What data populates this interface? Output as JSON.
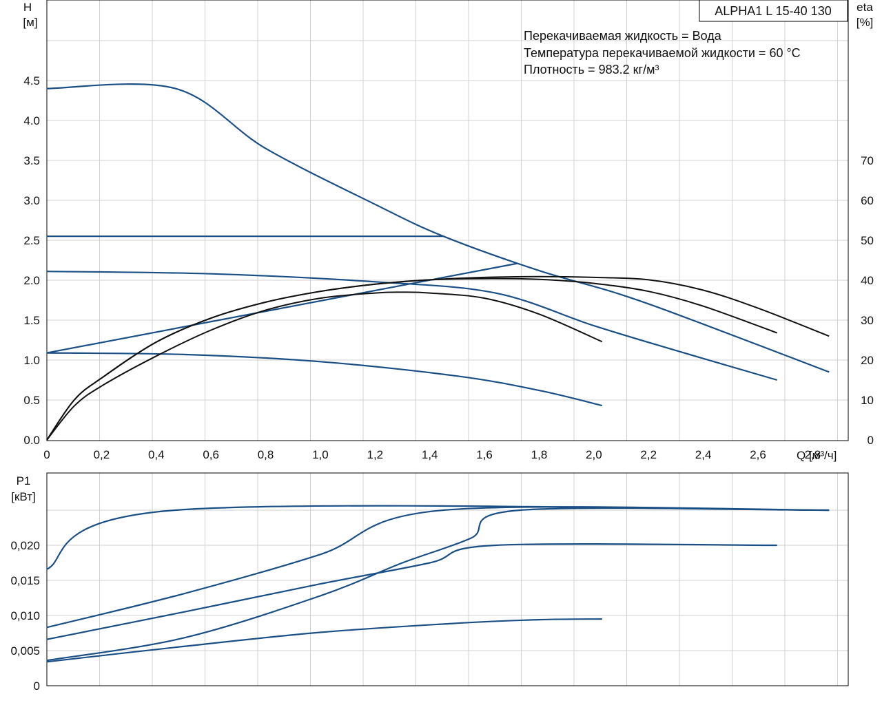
{
  "title_box": "ALPHA1 L 15-40  130",
  "info_lines": [
    "Перекачиваемая жидкость = Вода",
    "Температура перекачиваемой жидкости = 60 °C",
    "Плотность = 983.2 кг/м³"
  ],
  "chart_data": [
    {
      "type": "line",
      "name": "H-Q",
      "ylabel_line1": "H",
      "ylabel_line2": "[м]",
      "y2label_line1": "eta",
      "y2label_line2": "[%]",
      "xlabel": "Q [м³/ч]",
      "xlim": [
        0,
        2.93
      ],
      "ylim": [
        0,
        5.5
      ],
      "y2lim": [
        0,
        110
      ],
      "xticks": [
        "0",
        "0,2",
        "0,4",
        "0,6",
        "0,8",
        "1,0",
        "1,2",
        "1,4",
        "1,6",
        "1,8",
        "2,0",
        "2,2",
        "2,4",
        "2,6",
        "2,8"
      ],
      "xtick_values": [
        0,
        0.2,
        0.4,
        0.6,
        0.8,
        1.0,
        1.2,
        1.4,
        1.6,
        1.8,
        2.0,
        2.2,
        2.4,
        2.6,
        2.8
      ],
      "yticks": [
        "0.0",
        "0.5",
        "1.0",
        "1.5",
        "2.0",
        "2.5",
        "3.0",
        "3.5",
        "4.0",
        "4.5"
      ],
      "ytick_values": [
        0,
        0.5,
        1.0,
        1.5,
        2.0,
        2.5,
        3.0,
        3.5,
        4.0,
        4.5
      ],
      "y2ticks": [
        "0",
        "10",
        "20",
        "30",
        "40",
        "50",
        "60",
        "70"
      ],
      "y2tick_values": [
        0,
        10,
        20,
        30,
        40,
        50,
        60,
        70
      ],
      "head_series": [
        {
          "x": [
            0,
            0.47,
            0.8,
            1.2,
            1.45,
            1.8,
            2.1,
            2.4,
            2.86
          ],
          "y": [
            4.4,
            4.4,
            3.65,
            2.95,
            2.55,
            2.12,
            1.82,
            1.45,
            0.85
          ]
        },
        {
          "x": [
            0,
            1.45
          ],
          "y": [
            2.55,
            2.55
          ]
        },
        {
          "x": [
            0,
            1.72
          ],
          "y": [
            1.09,
            2.21
          ]
        },
        {
          "x": [
            0,
            0.6,
            1.2,
            1.64,
            2.0,
            2.3,
            2.67
          ],
          "y": [
            2.11,
            2.08,
            1.98,
            1.84,
            1.43,
            1.12,
            0.75
          ]
        },
        {
          "x": [
            0,
            0.5,
            1.0,
            1.5,
            1.8,
            2.03
          ],
          "y": [
            1.09,
            1.07,
            0.98,
            0.8,
            0.62,
            0.43
          ]
        }
      ],
      "eta_series": [
        {
          "x": [
            0,
            0.1,
            0.2,
            0.4,
            0.6,
            0.8,
            1.0,
            1.2,
            1.4,
            1.6,
            1.8,
            2.0,
            2.2,
            2.4,
            2.6,
            2.86
          ],
          "y": [
            0,
            10,
            15.5,
            24.5,
            30.5,
            34.5,
            37.2,
            39,
            40.1,
            40.7,
            40.9,
            40.7,
            40.1,
            37.5,
            33,
            26
          ]
        },
        {
          "x": [
            0,
            0.1,
            0.2,
            0.4,
            0.6,
            0.8,
            1.0,
            1.2,
            1.4,
            1.6,
            1.8,
            2.0,
            2.2,
            2.4,
            2.67
          ],
          "y": [
            0,
            10,
            15.5,
            24.5,
            30.5,
            34.5,
            37.2,
            39,
            40.1,
            40.4,
            40.2,
            39.2,
            37.2,
            33.5,
            26.8
          ]
        },
        {
          "x": [
            0,
            0.1,
            0.2,
            0.4,
            0.6,
            0.8,
            1.0,
            1.2,
            1.3,
            1.4,
            1.6,
            1.8,
            2.03
          ],
          "y": [
            0,
            8.5,
            13.5,
            21,
            27.5,
            32.5,
            35.5,
            36.8,
            37,
            36.8,
            35.5,
            31.5,
            24.6
          ]
        }
      ]
    },
    {
      "type": "line",
      "name": "P1-Q",
      "ylabel_line1": "P1",
      "ylabel_line2": "[кВт]",
      "xlim": [
        0,
        2.93
      ],
      "ylim": [
        0,
        0.025
      ],
      "yticks": [
        "0",
        "0,005",
        "0,010",
        "0,015",
        "0,020"
      ],
      "ytick_values": [
        0,
        0.005,
        0.01,
        0.015,
        0.02
      ],
      "power_series": [
        {
          "x": [
            0,
            0.47,
            2.86
          ],
          "y": [
            0.0166,
            0.025,
            0.025
          ]
        },
        {
          "x": [
            0,
            0.5,
            1.0,
            1.45,
            2.86
          ],
          "y": [
            0.0083,
            0.0131,
            0.0187,
            0.025,
            0.025
          ]
        },
        {
          "x": [
            0,
            0.5,
            1.0,
            1.4,
            1.64,
            2.67
          ],
          "y": [
            0.0066,
            0.0105,
            0.0145,
            0.0175,
            0.02,
            0.02
          ]
        },
        {
          "x": [
            0,
            0.5,
            1.0,
            1.3,
            1.55,
            1.73,
            2.86
          ],
          "y": [
            0.0036,
            0.0068,
            0.0128,
            0.0175,
            0.021,
            0.025,
            0.025
          ]
        },
        {
          "x": [
            0,
            0.5,
            1.0,
            1.5,
            1.8,
            2.03
          ],
          "y": [
            0.0034,
            0.0056,
            0.0076,
            0.0089,
            0.0094,
            0.0095
          ]
        }
      ]
    }
  ]
}
